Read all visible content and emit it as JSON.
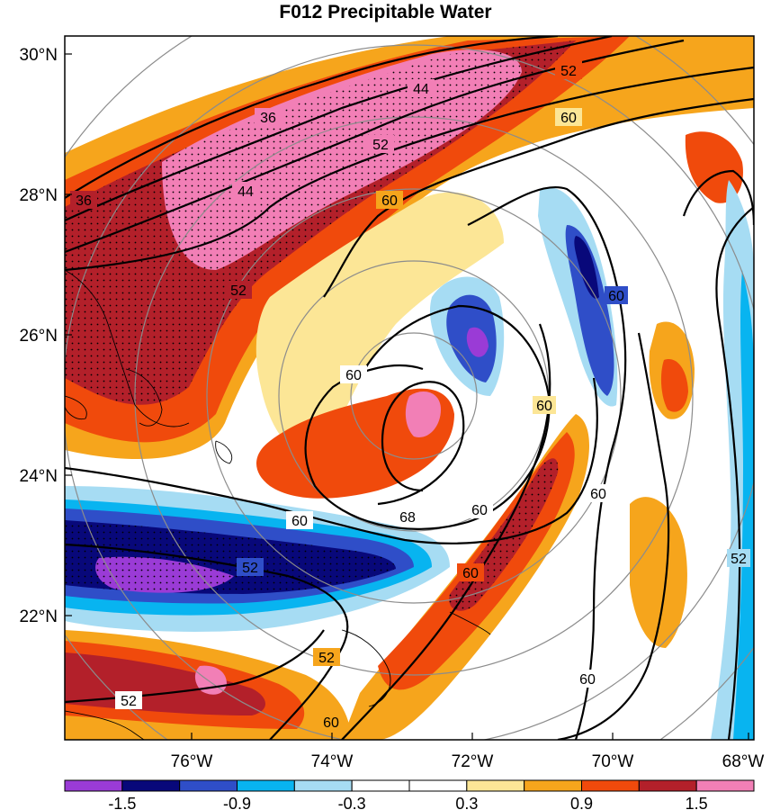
{
  "title": "F012 Precipitable Water",
  "map": {
    "lat_ticks": [
      "30°N",
      "28°N",
      "26°N",
      "24°N",
      "22°N"
    ],
    "lon_ticks": [
      "76°W",
      "74°W",
      "72°W",
      "70°W",
      "68°W"
    ],
    "contour_labels": [
      "36",
      "44",
      "52",
      "60",
      "36",
      "44",
      "52",
      "52",
      "60",
      "60",
      "60",
      "60",
      "60",
      "68",
      "60",
      "52",
      "60",
      "52",
      "52",
      "60",
      "52",
      "60",
      "60"
    ]
  },
  "colorbar": {
    "colors": [
      "#9a3bd6",
      "#08087a",
      "#2f4ec8",
      "#08b4f0",
      "#a6dcf3",
      "#ffffff",
      "#ffffff",
      "#fce696",
      "#f6a51c",
      "#f04a0c",
      "#b3202a",
      "#f27fb6"
    ],
    "labels": [
      "-1.5",
      "-0.9",
      "-0.3",
      "0.3",
      "0.9",
      "1.5"
    ]
  }
}
